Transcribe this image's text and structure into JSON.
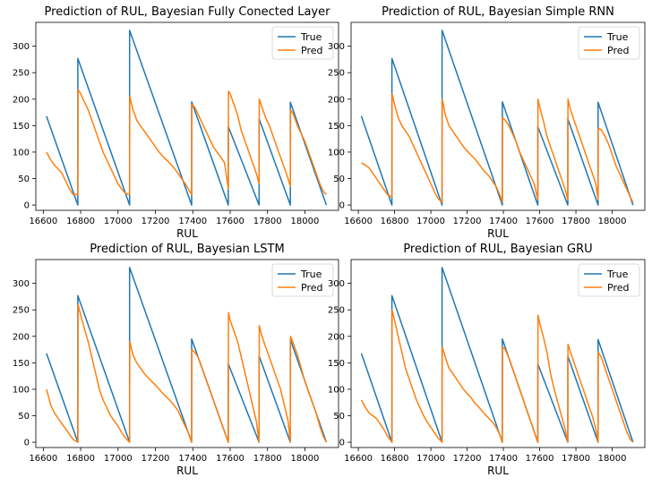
{
  "chart_data": [
    {
      "type": "line",
      "title": "Prediction of RUL, Bayesian Fully Conected Layer",
      "xlabel": "RUL",
      "ylabel": "",
      "xlim": [
        16560,
        18180
      ],
      "ylim": [
        -10,
        345
      ],
      "xticks": [
        16600,
        16800,
        17000,
        17200,
        17400,
        17600,
        17800,
        18000
      ],
      "yticks": [
        0,
        50,
        100,
        150,
        200,
        250,
        300
      ],
      "legend_position": "top-right",
      "colors": {
        "True": "#1f77b4",
        "Pred": "#ff7f0e"
      },
      "series": [
        {
          "name": "True",
          "x": [
            16617,
            16785,
            16785,
            17062,
            17062,
            17394,
            17394,
            17590,
            17590,
            17755,
            17755,
            17922,
            17922,
            18115
          ],
          "values": [
            168,
            0,
            277,
            0,
            330,
            0,
            195,
            0,
            148,
            0,
            163,
            0,
            194,
            0
          ]
        },
        {
          "name": "Pred",
          "x": [
            16617,
            16640,
            16660,
            16680,
            16700,
            16720,
            16740,
            16760,
            16785,
            16786,
            16800,
            16820,
            16840,
            16860,
            16880,
            16900,
            16920,
            16940,
            16960,
            16980,
            17000,
            17020,
            17040,
            17062,
            17063,
            17080,
            17100,
            17120,
            17140,
            17160,
            17180,
            17200,
            17220,
            17240,
            17260,
            17280,
            17300,
            17320,
            17340,
            17360,
            17380,
            17394,
            17395,
            17410,
            17430,
            17450,
            17470,
            17490,
            17510,
            17530,
            17550,
            17570,
            17590,
            17591,
            17600,
            17620,
            17640,
            17660,
            17680,
            17700,
            17720,
            17740,
            17755,
            17756,
            17770,
            17790,
            17810,
            17830,
            17850,
            17870,
            17890,
            17910,
            17922,
            17923,
            17940,
            17960,
            17980,
            18000,
            18020,
            18040,
            18060,
            18080,
            18100,
            18115
          ],
          "values": [
            100,
            85,
            75,
            68,
            60,
            45,
            30,
            20,
            20,
            218,
            210,
            195,
            180,
            160,
            140,
            120,
            100,
            85,
            70,
            55,
            40,
            30,
            22,
            20,
            205,
            180,
            160,
            150,
            140,
            130,
            120,
            110,
            100,
            92,
            85,
            78,
            70,
            60,
            50,
            40,
            28,
            20,
            190,
            185,
            170,
            155,
            140,
            125,
            110,
            100,
            90,
            80,
            30,
            215,
            210,
            190,
            170,
            140,
            120,
            100,
            80,
            60,
            40,
            200,
            185,
            165,
            150,
            130,
            110,
            90,
            70,
            50,
            35,
            180,
            170,
            150,
            135,
            120,
            100,
            80,
            60,
            40,
            25,
            20
          ]
        }
      ]
    },
    {
      "type": "line",
      "title": "Prediction of RUL, Bayesian Simple RNN",
      "xlabel": "RUL",
      "ylabel": "",
      "xlim": [
        16560,
        18180
      ],
      "ylim": [
        -10,
        345
      ],
      "xticks": [
        16600,
        16800,
        17000,
        17200,
        17400,
        17600,
        17800,
        18000
      ],
      "yticks": [
        0,
        50,
        100,
        150,
        200,
        250,
        300
      ],
      "legend_position": "top-right",
      "colors": {
        "True": "#1f77b4",
        "Pred": "#ff7f0e"
      },
      "series": [
        {
          "name": "True",
          "x": [
            16617,
            16785,
            16785,
            17062,
            17062,
            17394,
            17394,
            17590,
            17590,
            17755,
            17755,
            17922,
            17922,
            18115
          ],
          "values": [
            168,
            0,
            277,
            0,
            330,
            0,
            195,
            0,
            148,
            0,
            163,
            0,
            194,
            0
          ]
        },
        {
          "name": "Pred",
          "x": [
            16617,
            16640,
            16660,
            16680,
            16700,
            16720,
            16740,
            16760,
            16785,
            16786,
            16800,
            16820,
            16840,
            16860,
            16880,
            16900,
            16920,
            16940,
            16960,
            16980,
            17000,
            17020,
            17040,
            17062,
            17063,
            17080,
            17100,
            17120,
            17140,
            17160,
            17180,
            17200,
            17220,
            17240,
            17260,
            17280,
            17300,
            17320,
            17340,
            17360,
            17380,
            17394,
            17395,
            17410,
            17430,
            17450,
            17470,
            17490,
            17510,
            17530,
            17550,
            17570,
            17590,
            17591,
            17600,
            17620,
            17640,
            17660,
            17680,
            17700,
            17720,
            17740,
            17755,
            17756,
            17770,
            17790,
            17810,
            17830,
            17850,
            17870,
            17890,
            17910,
            17922,
            17923,
            17940,
            17960,
            17980,
            18000,
            18020,
            18040,
            18060,
            18080,
            18100,
            18115
          ],
          "values": [
            80,
            75,
            70,
            60,
            50,
            40,
            30,
            20,
            15,
            210,
            190,
            165,
            150,
            140,
            130,
            115,
            100,
            85,
            70,
            55,
            40,
            25,
            12,
            5,
            200,
            170,
            150,
            140,
            130,
            120,
            110,
            102,
            95,
            88,
            80,
            70,
            62,
            55,
            45,
            35,
            20,
            5,
            165,
            160,
            150,
            135,
            120,
            100,
            85,
            70,
            55,
            40,
            10,
            200,
            185,
            160,
            130,
            110,
            90,
            70,
            50,
            30,
            10,
            200,
            180,
            160,
            140,
            120,
            100,
            80,
            60,
            40,
            10,
            145,
            142,
            130,
            115,
            95,
            75,
            60,
            45,
            30,
            15,
            5
          ]
        }
      ]
    },
    {
      "type": "line",
      "title": "Prediction of RUL, Bayesian LSTM",
      "xlabel": "RUL",
      "ylabel": "",
      "xlim": [
        16560,
        18180
      ],
      "ylim": [
        -10,
        345
      ],
      "xticks": [
        16600,
        16800,
        17000,
        17200,
        17400,
        17600,
        17800,
        18000
      ],
      "yticks": [
        0,
        50,
        100,
        150,
        200,
        250,
        300
      ],
      "legend_position": "top-right",
      "colors": {
        "True": "#1f77b4",
        "Pred": "#ff7f0e"
      },
      "series": [
        {
          "name": "True",
          "x": [
            16617,
            16785,
            16785,
            17062,
            17062,
            17394,
            17394,
            17590,
            17590,
            17755,
            17755,
            17922,
            17922,
            18115
          ],
          "values": [
            168,
            0,
            277,
            0,
            330,
            0,
            195,
            0,
            148,
            0,
            163,
            0,
            194,
            0
          ]
        },
        {
          "name": "Pred",
          "x": [
            16617,
            16640,
            16660,
            16680,
            16700,
            16720,
            16740,
            16760,
            16785,
            16786,
            16800,
            16820,
            16840,
            16860,
            16880,
            16900,
            16920,
            16940,
            16960,
            16980,
            17000,
            17020,
            17040,
            17062,
            17063,
            17080,
            17100,
            17120,
            17140,
            17160,
            17180,
            17200,
            17220,
            17240,
            17260,
            17280,
            17300,
            17320,
            17340,
            17360,
            17380,
            17394,
            17395,
            17410,
            17430,
            17450,
            17470,
            17490,
            17510,
            17530,
            17550,
            17570,
            17590,
            17591,
            17600,
            17620,
            17640,
            17660,
            17680,
            17700,
            17720,
            17740,
            17755,
            17756,
            17770,
            17790,
            17810,
            17830,
            17850,
            17870,
            17890,
            17910,
            17922,
            17923,
            17940,
            17960,
            17980,
            18000,
            18020,
            18040,
            18060,
            18080,
            18100,
            18115
          ],
          "values": [
            100,
            70,
            55,
            45,
            35,
            25,
            15,
            5,
            0,
            260,
            240,
            215,
            190,
            160,
            130,
            100,
            80,
            65,
            50,
            40,
            30,
            18,
            8,
            0,
            190,
            165,
            150,
            140,
            130,
            122,
            115,
            108,
            100,
            92,
            85,
            78,
            70,
            60,
            45,
            30,
            15,
            0,
            175,
            170,
            160,
            140,
            120,
            100,
            80,
            60,
            40,
            20,
            0,
            245,
            230,
            210,
            190,
            160,
            130,
            100,
            70,
            40,
            0,
            220,
            200,
            180,
            160,
            140,
            120,
            100,
            70,
            40,
            0,
            200,
            185,
            165,
            140,
            115,
            95,
            75,
            55,
            30,
            10,
            0
          ]
        }
      ]
    },
    {
      "type": "line",
      "title": "Prediction of RUL, Bayesian GRU",
      "xlabel": "RUL",
      "ylabel": "",
      "xlim": [
        16560,
        18180
      ],
      "ylim": [
        -10,
        345
      ],
      "xticks": [
        16600,
        16800,
        17000,
        17200,
        17400,
        17600,
        17800,
        18000
      ],
      "yticks": [
        0,
        50,
        100,
        150,
        200,
        250,
        300
      ],
      "legend_position": "top-right",
      "colors": {
        "True": "#1f77b4",
        "Pred": "#ff7f0e"
      },
      "series": [
        {
          "name": "True",
          "x": [
            16617,
            16785,
            16785,
            17062,
            17062,
            17394,
            17394,
            17590,
            17590,
            17755,
            17755,
            17922,
            17922,
            18115
          ],
          "values": [
            168,
            0,
            277,
            0,
            330,
            0,
            195,
            0,
            148,
            0,
            163,
            0,
            194,
            0
          ]
        },
        {
          "name": "Pred",
          "x": [
            16617,
            16640,
            16660,
            16680,
            16700,
            16720,
            16740,
            16760,
            16785,
            16786,
            16800,
            16820,
            16840,
            16860,
            16880,
            16900,
            16920,
            16940,
            16960,
            16980,
            17000,
            17020,
            17040,
            17062,
            17063,
            17080,
            17100,
            17120,
            17140,
            17160,
            17180,
            17200,
            17220,
            17240,
            17260,
            17280,
            17300,
            17320,
            17340,
            17360,
            17380,
            17394,
            17395,
            17410,
            17430,
            17450,
            17470,
            17490,
            17510,
            17530,
            17550,
            17570,
            17590,
            17591,
            17600,
            17620,
            17640,
            17660,
            17680,
            17700,
            17720,
            17740,
            17755,
            17756,
            17770,
            17790,
            17810,
            17830,
            17850,
            17870,
            17890,
            17910,
            17922,
            17923,
            17940,
            17960,
            17980,
            18000,
            18020,
            18040,
            18060,
            18080,
            18100,
            18115
          ],
          "values": [
            80,
            65,
            55,
            50,
            45,
            35,
            25,
            12,
            0,
            250,
            230,
            200,
            170,
            140,
            120,
            100,
            80,
            65,
            50,
            38,
            28,
            18,
            8,
            0,
            180,
            160,
            140,
            130,
            120,
            110,
            100,
            92,
            85,
            75,
            68,
            60,
            52,
            45,
            38,
            28,
            15,
            0,
            180,
            175,
            160,
            140,
            120,
            100,
            80,
            60,
            40,
            20,
            0,
            240,
            225,
            200,
            170,
            130,
            100,
            75,
            50,
            25,
            0,
            185,
            170,
            150,
            130,
            110,
            90,
            70,
            50,
            25,
            0,
            170,
            160,
            140,
            120,
            100,
            80,
            60,
            40,
            20,
            5,
            0
          ]
        }
      ]
    }
  ]
}
